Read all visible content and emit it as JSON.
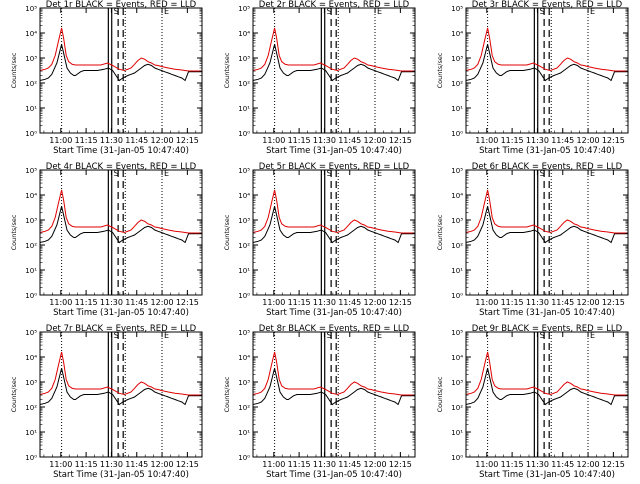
{
  "figure": {
    "ylabel": "Counts/sec",
    "xlabel": "Start Time (31-Jan-05 10:47:40)",
    "colors": {
      "events": "#000000",
      "lld": "#e00000",
      "frame": "#000000"
    }
  },
  "chart_data": [
    {
      "type": "line",
      "title": "Det 1r BLACK = Events, RED = LLD",
      "panel": 1
    },
    {
      "type": "line",
      "title": "Det 2r BLACK = Events, RED = LLD",
      "panel": 2
    },
    {
      "type": "line",
      "title": "Det 3r BLACK = Events, RED = LLD",
      "panel": 3
    },
    {
      "type": "line",
      "title": "Det 4r BLACK = Events, RED = LLD",
      "panel": 4
    },
    {
      "type": "line",
      "title": "Det 5r BLACK = Events, RED = LLD",
      "panel": 5
    },
    {
      "type": "line",
      "title": "Det 6r BLACK = Events, RED = LLD",
      "panel": 6
    },
    {
      "type": "line",
      "title": "Det 7r BLACK = Events, RED = LLD",
      "panel": 7
    },
    {
      "type": "line",
      "title": "Det 8r BLACK = Events, RED = LLD",
      "panel": 8
    },
    {
      "type": "line",
      "title": "Det 9r BLACK = Events, RED = LLD",
      "panel": 9
    }
  ],
  "shared": {
    "x_ticks": [
      "11:00",
      "11:15",
      "11:30",
      "11:45",
      "12:00",
      "12:15"
    ],
    "x_tick_minutes": [
      12.33,
      27.33,
      42.33,
      57.33,
      72.33,
      87.33
    ],
    "xlim_minutes": [
      0,
      96
    ],
    "y_ticks": [
      "10⁰",
      "10¹",
      "10²",
      "10³",
      "10⁴",
      "10⁵"
    ],
    "y_log_range": [
      0,
      5
    ],
    "dotted_lines_minutes": [
      12.8,
      50.5,
      72.3
    ],
    "solid_lines_minutes": [
      40.5,
      42.5
    ],
    "dashed_lines_minutes": [
      46.3,
      49.3
    ],
    "marker_labels": [
      "S",
      "E"
    ],
    "events_series": {
      "name": "Events",
      "x": [
        0,
        3,
        5,
        7,
        10,
        11.5,
        12.8,
        14,
        16,
        18,
        20,
        21,
        24,
        26,
        30,
        34,
        38,
        40.5,
        43,
        47,
        49,
        52,
        54,
        56,
        58,
        60,
        62,
        64,
        66,
        68,
        70,
        72,
        74,
        76,
        78,
        80,
        82,
        84,
        86,
        88,
        90,
        92,
        94,
        96
      ],
      "y": [
        2.1,
        2.15,
        2.2,
        2.35,
        2.8,
        3.2,
        3.55,
        3.2,
        2.6,
        2.4,
        2.3,
        2.3,
        2.45,
        2.5,
        2.5,
        2.5,
        2.55,
        2.6,
        2.5,
        2.1,
        2.2,
        2.3,
        2.35,
        2.4,
        2.5,
        2.6,
        2.7,
        2.75,
        2.7,
        2.6,
        2.55,
        2.5,
        2.45,
        2.4,
        2.35,
        2.3,
        2.25,
        2.2,
        2.1,
        2.45,
        2.45,
        2.45,
        2.45,
        2.45
      ]
    },
    "lld_series": {
      "name": "LLD",
      "x": [
        0,
        3,
        5,
        7,
        9,
        11,
        12.8,
        14,
        15.5,
        17,
        19,
        21,
        24,
        30,
        36,
        40,
        43,
        47,
        50,
        54,
        56,
        58,
        60,
        62,
        64,
        66,
        68,
        70,
        72,
        76,
        80,
        84,
        86,
        88,
        90,
        92,
        94,
        96
      ],
      "y": [
        2.5,
        2.55,
        2.6,
        2.75,
        3.1,
        3.7,
        4.2,
        3.8,
        3.1,
        2.85,
        2.75,
        2.72,
        2.72,
        2.72,
        2.72,
        2.8,
        2.7,
        2.55,
        2.5,
        2.6,
        2.75,
        2.9,
        3.0,
        2.95,
        2.85,
        2.8,
        2.72,
        2.7,
        2.66,
        2.6,
        2.55,
        2.52,
        2.5,
        2.48,
        2.48,
        2.48,
        2.48,
        2.48
      ]
    }
  }
}
